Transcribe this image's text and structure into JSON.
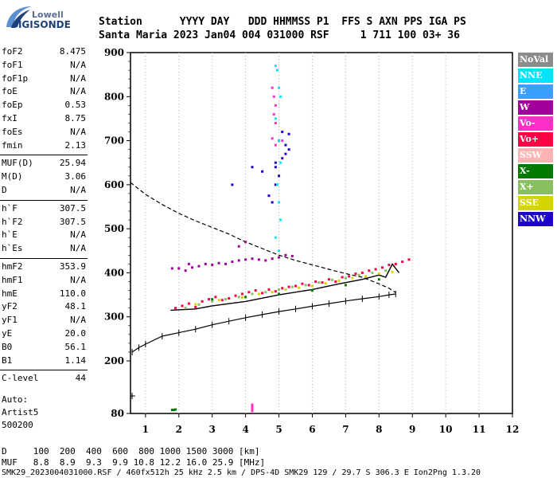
{
  "logo": {
    "top": "Lowell",
    "bottom": "DIGISONDE"
  },
  "header": {
    "line1": "Station      YYYY DAY   DDD HHMMSS P1  FFS S AXN PPS IGA PS",
    "line2": "Santa Maria 2023 Jan04 004 031000 RSF     1 711 100 03+ 36"
  },
  "params": {
    "g1": [
      {
        "label": "foF2",
        "value": "8.475"
      },
      {
        "label": "foF1",
        "value": "N/A"
      },
      {
        "label": "foF1p",
        "value": "N/A"
      },
      {
        "label": "foE",
        "value": "N/A"
      },
      {
        "label": "foEp",
        "value": "0.53"
      },
      {
        "label": "fxI",
        "value": "8.75"
      },
      {
        "label": "foEs",
        "value": "N/A"
      },
      {
        "label": "fmin",
        "value": "2.13"
      }
    ],
    "g2": [
      {
        "label": "MUF(D)",
        "value": "25.94"
      },
      {
        "label": "M(D)",
        "value": "3.06"
      },
      {
        "label": "D",
        "value": "N/A"
      }
    ],
    "g3": [
      {
        "label": "h`F",
        "value": "307.5"
      },
      {
        "label": "h`F2",
        "value": "307.5"
      },
      {
        "label": "h`E",
        "value": "N/A"
      },
      {
        "label": "h`Es",
        "value": "N/A"
      }
    ],
    "g4": [
      {
        "label": "hmF2",
        "value": "353.9"
      },
      {
        "label": "hmF1",
        "value": "N/A"
      },
      {
        "label": "hmE",
        "value": "110.0"
      },
      {
        "label": "yF2",
        "value": "48.1"
      },
      {
        "label": "yF1",
        "value": "N/A"
      },
      {
        "label": "yE",
        "value": "20.0"
      },
      {
        "label": "B0",
        "value": "56.1"
      },
      {
        "label": "B1",
        "value": "1.14"
      }
    ],
    "g5": [
      {
        "label": "C-level",
        "value": "44"
      }
    ]
  },
  "auto": {
    "line1": "Auto:",
    "line2": "Artist5",
    "line3": "500200"
  },
  "legend": [
    {
      "label": "NoVal",
      "color": "#8c8c8c",
      "text": "#ffffff"
    },
    {
      "label": "NNE",
      "color": "#00e5ff",
      "text": "#ffffff"
    },
    {
      "label": "E",
      "color": "#3aa0ff",
      "text": "#ffffff"
    },
    {
      "label": "W",
      "color": "#a0009b",
      "text": "#ffffff"
    },
    {
      "label": "Vo-",
      "color": "#ff2ec8",
      "text": "#ffffff"
    },
    {
      "label": "Vo+",
      "color": "#ff0044",
      "text": "#ffffff"
    },
    {
      "label": "SSW",
      "color": "#ffb3b3",
      "text": "#ffffff"
    },
    {
      "label": "X-",
      "color": "#007a00",
      "text": "#ffffff"
    },
    {
      "label": "X+",
      "color": "#88c060",
      "text": "#ffffff"
    },
    {
      "label": "SSE",
      "color": "#d4d400",
      "text": "#ffffff"
    },
    {
      "label": "NNW",
      "color": "#1e00d0",
      "text": "#ffffff"
    }
  ],
  "footer": {
    "d_row": "D     100  200  400  600  800 1000 1500 3000 [km]",
    "muf_row": "MUF   8.8  8.9  9.3  9.9 10.8 12.2 16.0 25.9 [MHz]",
    "file_row": "SMK29_2023004031000.RSF / 460fx512h 25 kHz 2.5 km / DPS-4D SMK29 129 / 29.7 S 306.3 E Ion2Png 1.3.20"
  },
  "chart_data": {
    "type": "scatter",
    "title": "",
    "xlabel": "",
    "ylabel": "",
    "xlim": [
      0.55,
      12
    ],
    "ylim": [
      80,
      900
    ],
    "x_ticks": [
      1,
      2,
      3,
      4,
      5,
      6,
      7,
      8,
      9,
      10,
      11,
      12
    ],
    "y_ticks": [
      80,
      200,
      300,
      400,
      500,
      600,
      700,
      800,
      900
    ],
    "grid": "vertical dotted",
    "legend_position": "right",
    "series": [
      {
        "name": "",
        "kind": "profile-dashed",
        "points": [
          [
            0.55,
            605
          ],
          [
            1.0,
            578
          ],
          [
            1.5,
            555
          ],
          [
            2.0,
            535
          ],
          [
            2.5,
            518
          ],
          [
            3.0,
            503
          ],
          [
            3.5,
            488
          ],
          [
            4.0,
            470
          ],
          [
            4.5,
            455
          ],
          [
            5.0,
            440
          ],
          [
            5.5,
            428
          ],
          [
            6.0,
            418
          ],
          [
            6.5,
            408
          ],
          [
            7.0,
            398
          ],
          [
            7.5,
            390
          ],
          [
            8.0,
            375
          ],
          [
            8.3,
            365
          ],
          [
            8.5,
            355
          ]
        ]
      },
      {
        "name": "",
        "kind": "trace-fitted",
        "points": [
          [
            1.75,
            315
          ],
          [
            2.5,
            318
          ],
          [
            3.0,
            325
          ],
          [
            4.0,
            335
          ],
          [
            5.0,
            350
          ],
          [
            6.0,
            362
          ],
          [
            6.8,
            375
          ],
          [
            7.5,
            385
          ],
          [
            8.0,
            395
          ],
          [
            8.2,
            390
          ],
          [
            8.4,
            420
          ],
          [
            8.6,
            400
          ]
        ]
      },
      {
        "name": "",
        "kind": "trace-E-layer",
        "points": [
          [
            0.6,
            220
          ],
          [
            0.8,
            230
          ],
          [
            1.0,
            238
          ],
          [
            1.5,
            256
          ],
          [
            2.0,
            264
          ],
          [
            2.5,
            272
          ],
          [
            3.0,
            282
          ],
          [
            3.5,
            290
          ],
          [
            4.0,
            298
          ],
          [
            4.5,
            305
          ],
          [
            5.0,
            312
          ],
          [
            5.5,
            318
          ],
          [
            6.0,
            324
          ],
          [
            6.5,
            330
          ],
          [
            7.0,
            336
          ],
          [
            7.5,
            341
          ],
          [
            8.0,
            346
          ],
          [
            8.3,
            350
          ],
          [
            8.5,
            352
          ]
        ]
      },
      {
        "name": "NNW",
        "kind": "scatter",
        "points": [
          [
            4.5,
            630
          ],
          [
            4.7,
            575
          ],
          [
            4.8,
            560
          ],
          [
            4.9,
            600
          ],
          [
            5.0,
            620
          ],
          [
            5.1,
            660
          ],
          [
            5.2,
            690
          ],
          [
            5.3,
            715
          ],
          [
            5.1,
            720
          ],
          [
            4.9,
            650
          ],
          [
            5.0,
            700
          ],
          [
            4.2,
            640
          ],
          [
            3.6,
            600
          ],
          [
            5.3,
            680
          ],
          [
            4.9,
            640
          ],
          [
            5.2,
            670
          ]
        ]
      },
      {
        "name": "W",
        "kind": "scatter",
        "points": [
          [
            2.0,
            410
          ],
          [
            2.2,
            405
          ],
          [
            2.4,
            412
          ],
          [
            2.6,
            415
          ],
          [
            2.8,
            420
          ],
          [
            3.0,
            418
          ],
          [
            3.2,
            422
          ],
          [
            3.4,
            420
          ],
          [
            3.6,
            425
          ],
          [
            3.8,
            428
          ],
          [
            4.0,
            430
          ],
          [
            4.2,
            432
          ],
          [
            4.4,
            430
          ],
          [
            4.6,
            428
          ],
          [
            4.8,
            432
          ],
          [
            5.0,
            435
          ],
          [
            5.2,
            440
          ],
          [
            5.4,
            438
          ],
          [
            3.8,
            460
          ],
          [
            4.0,
            470
          ],
          [
            2.3,
            420
          ],
          [
            1.8,
            410
          ]
        ]
      },
      {
        "name": "Vo+",
        "kind": "scatter",
        "points": [
          [
            1.9,
            320
          ],
          [
            2.1,
            325
          ],
          [
            2.3,
            330
          ],
          [
            2.5,
            322
          ],
          [
            2.7,
            335
          ],
          [
            2.9,
            340
          ],
          [
            3.1,
            345
          ],
          [
            3.3,
            338
          ],
          [
            3.5,
            342
          ],
          [
            3.7,
            348
          ],
          [
            3.9,
            352
          ],
          [
            4.1,
            356
          ],
          [
            4.3,
            360
          ],
          [
            4.5,
            354
          ],
          [
            4.7,
            362
          ],
          [
            4.9,
            358
          ],
          [
            5.1,
            365
          ],
          [
            5.3,
            368
          ],
          [
            5.5,
            370
          ],
          [
            5.7,
            375
          ],
          [
            5.9,
            372
          ],
          [
            6.1,
            380
          ],
          [
            6.3,
            378
          ],
          [
            6.5,
            385
          ],
          [
            6.7,
            380
          ],
          [
            6.9,
            390
          ],
          [
            7.1,
            392
          ],
          [
            7.3,
            398
          ],
          [
            7.5,
            400
          ],
          [
            7.7,
            405
          ],
          [
            7.9,
            408
          ],
          [
            8.1,
            412
          ],
          [
            8.3,
            418
          ],
          [
            8.5,
            420
          ],
          [
            8.7,
            425
          ],
          [
            8.9,
            430
          ]
        ]
      },
      {
        "name": "X+",
        "kind": "scatter",
        "points": [
          [
            2.2,
            320
          ],
          [
            2.6,
            328
          ],
          [
            3.0,
            335
          ],
          [
            3.4,
            340
          ],
          [
            3.8,
            345
          ],
          [
            4.2,
            352
          ],
          [
            4.6,
            356
          ],
          [
            5.0,
            362
          ],
          [
            5.4,
            368
          ],
          [
            5.8,
            372
          ],
          [
            6.2,
            378
          ],
          [
            6.6,
            384
          ],
          [
            7.0,
            388
          ],
          [
            7.4,
            395
          ],
          [
            7.8,
            400
          ],
          [
            8.2,
            405
          ]
        ]
      },
      {
        "name": "SSE",
        "kind": "scatter",
        "points": [
          [
            2.5,
            328
          ],
          [
            3.2,
            338
          ],
          [
            3.9,
            344
          ],
          [
            4.4,
            352
          ],
          [
            4.8,
            356
          ],
          [
            5.2,
            362
          ],
          [
            5.6,
            366
          ],
          [
            6.0,
            370
          ],
          [
            6.4,
            376
          ],
          [
            6.8,
            382
          ],
          [
            7.2,
            388
          ],
          [
            7.6,
            392
          ],
          [
            8.0,
            398
          ],
          [
            8.4,
            402
          ]
        ]
      },
      {
        "name": "NNE",
        "kind": "scatter",
        "points": [
          [
            4.9,
            870
          ],
          [
            4.95,
            860
          ],
          [
            5.0,
            820
          ],
          [
            5.05,
            800
          ],
          [
            4.9,
            750
          ],
          [
            5.0,
            700
          ],
          [
            5.05,
            650
          ],
          [
            4.95,
            600
          ],
          [
            5.0,
            560
          ],
          [
            5.05,
            520
          ],
          [
            4.9,
            480
          ],
          [
            5.0,
            450
          ]
        ]
      },
      {
        "name": "Vo-",
        "kind": "scatter",
        "points": [
          [
            4.8,
            820
          ],
          [
            4.85,
            800
          ],
          [
            4.9,
            780
          ],
          [
            4.85,
            760
          ],
          [
            4.9,
            740
          ],
          [
            4.8,
            705
          ],
          [
            4.9,
            690
          ],
          [
            5.1,
            700
          ],
          [
            4.2,
            86
          ],
          [
            4.2,
            90
          ],
          [
            4.2,
            95
          ],
          [
            4.2,
            100
          ]
        ]
      },
      {
        "name": "X-",
        "kind": "scatter",
        "points": [
          [
            1.8,
            88
          ],
          [
            1.85,
            88
          ],
          [
            1.9,
            89
          ],
          [
            3.0,
            340
          ],
          [
            4.0,
            345
          ],
          [
            5.0,
            352
          ],
          [
            6.0,
            360
          ],
          [
            7.0,
            372
          ],
          [
            8.0,
            385
          ]
        ]
      }
    ]
  }
}
